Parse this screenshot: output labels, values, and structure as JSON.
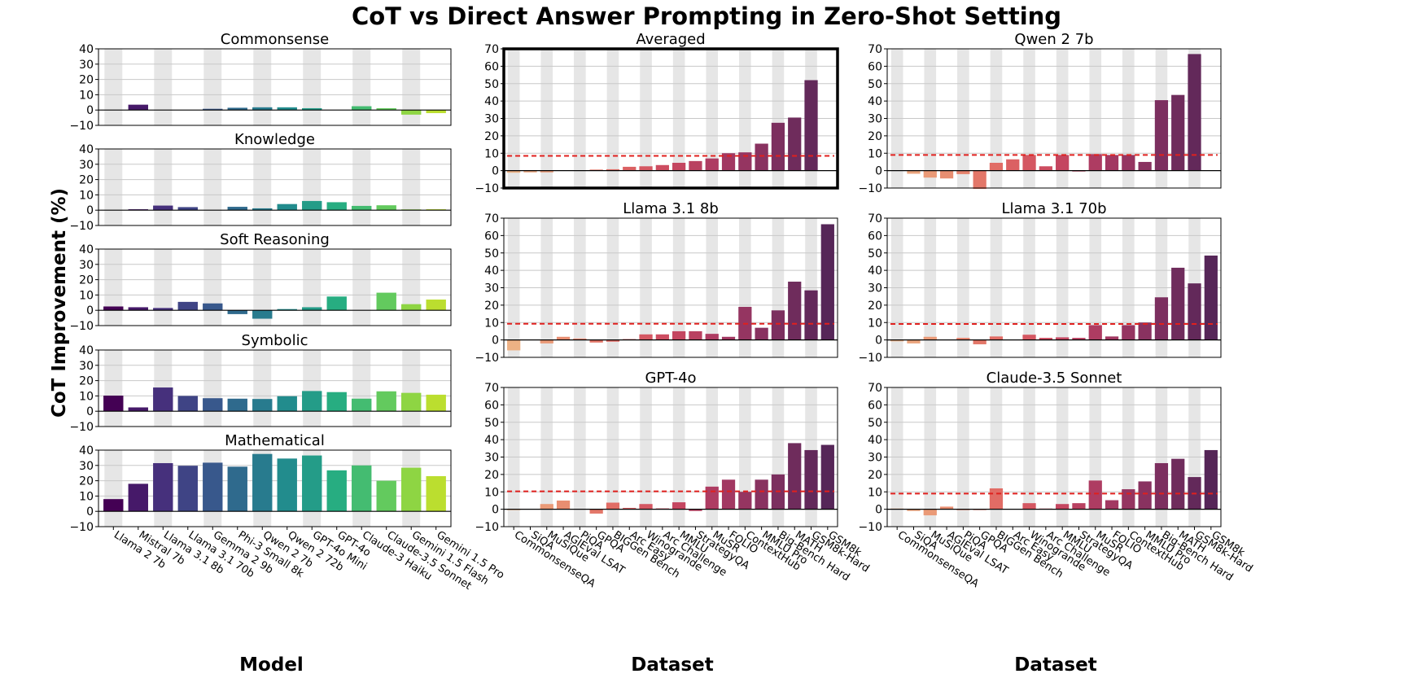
{
  "title": "CoT vs Direct Answer Prompting in Zero-Shot Setting",
  "ylabel": "CoT Improvement (%)",
  "model_axis_label": "Model",
  "dataset_axis_label": "Dataset",
  "colors": {
    "grid": "#c8c8c8",
    "band": "#e6e6e6",
    "mean_line": "#e0201e",
    "highlight_border": "#000000"
  },
  "bottom_caption_fragment": "",
  "chart_data": [
    {
      "id": "commonsense",
      "type": "bar",
      "title": "Commonsense",
      "ylim": [
        -10,
        40
      ],
      "yticks": [
        -10,
        0,
        10,
        20,
        30,
        40
      ],
      "palette": "viridis",
      "categories": [
        "Llama 2 7b",
        "Mistral 7b",
        "Llama 3.1 8b",
        "Llama 3.1 70b",
        "Gemma 2 9b",
        "Phi-3 Small 8k",
        "Qwen 2 7b",
        "Qwen 2 72b",
        "GPT-4o Mini",
        "GPT-4o",
        "Claude-3 Haiku",
        "Claude-3.5 Sonnet",
        "Gemini 1.5 Flash",
        "Gemini 1.5 Pro"
      ],
      "values": [
        0,
        3.5,
        0,
        0,
        0.8,
        1.5,
        1.8,
        1.8,
        1.2,
        0,
        2.5,
        1.2,
        -3.0,
        -2.0
      ]
    },
    {
      "id": "knowledge",
      "type": "bar",
      "title": "Knowledge",
      "ylim": [
        -10,
        40
      ],
      "yticks": [
        -10,
        0,
        10,
        20,
        30,
        40
      ],
      "palette": "viridis",
      "categories": [
        "Llama 2 7b",
        "Mistral 7b",
        "Llama 3.1 8b",
        "Llama 3.1 70b",
        "Gemma 2 9b",
        "Phi-3 Small 8k",
        "Qwen 2 7b",
        "Qwen 2 72b",
        "GPT-4o Mini",
        "GPT-4o",
        "Claude-3 Haiku",
        "Claude-3.5 Sonnet",
        "Gemini 1.5 Flash",
        "Gemini 1.5 Pro"
      ],
      "values": [
        0,
        0.6,
        3.0,
        2.0,
        0,
        2.2,
        1.2,
        4.0,
        6.0,
        5.2,
        2.8,
        3.2,
        0.5,
        0.6
      ]
    },
    {
      "id": "soft_reasoning",
      "type": "bar",
      "title": "Soft Reasoning",
      "ylim": [
        -10,
        40
      ],
      "yticks": [
        -10,
        0,
        10,
        20,
        30,
        40
      ],
      "palette": "viridis",
      "categories": [
        "Llama 2 7b",
        "Mistral 7b",
        "Llama 3.1 8b",
        "Llama 3.1 70b",
        "Gemma 2 9b",
        "Phi-3 Small 8k",
        "Qwen 2 7b",
        "Qwen 2 72b",
        "GPT-4o Mini",
        "GPT-4o",
        "Claude-3 Haiku",
        "Claude-3.5 Sonnet",
        "Gemini 1.5 Flash",
        "Gemini 1.5 Pro"
      ],
      "values": [
        2.5,
        2.0,
        1.5,
        5.5,
        4.5,
        -2.5,
        -5.5,
        0.8,
        2.0,
        9.0,
        0,
        11.5,
        4.0,
        7.0
      ]
    },
    {
      "id": "symbolic",
      "type": "bar",
      "title": "Symbolic",
      "ylim": [
        -10,
        40
      ],
      "yticks": [
        -10,
        0,
        10,
        20,
        30,
        40
      ],
      "palette": "viridis",
      "categories": [
        "Llama 2 7b",
        "Mistral 7b",
        "Llama 3.1 8b",
        "Llama 3.1 70b",
        "Gemma 2 9b",
        "Phi-3 Small 8k",
        "Qwen 2 7b",
        "Qwen 2 72b",
        "GPT-4o Mini",
        "GPT-4o",
        "Claude-3 Haiku",
        "Claude-3.5 Sonnet",
        "Gemini 1.5 Flash",
        "Gemini 1.5 Pro"
      ],
      "values": [
        10.2,
        2.5,
        15.5,
        10.0,
        8.5,
        8.2,
        8.0,
        9.8,
        13.2,
        12.5,
        8.2,
        13.0,
        12.0,
        10.8
      ]
    },
    {
      "id": "mathematical",
      "type": "bar",
      "title": "Mathematical",
      "ylim": [
        -10,
        40
      ],
      "yticks": [
        -10,
        0,
        10,
        20,
        30,
        40
      ],
      "palette": "viridis",
      "categories": [
        "Llama 2 7b",
        "Mistral 7b",
        "Llama 3.1 8b",
        "Llama 3.1 70b",
        "Gemma 2 9b",
        "Phi-3 Small 8k",
        "Qwen 2 7b",
        "Qwen 2 72b",
        "GPT-4o Mini",
        "GPT-4o",
        "Claude-3 Haiku",
        "Claude-3.5 Sonnet",
        "Gemini 1.5 Flash",
        "Gemini 1.5 Pro"
      ],
      "values": [
        8.0,
        18.0,
        31.5,
        29.8,
        31.8,
        29.2,
        37.5,
        34.5,
        36.5,
        26.8,
        30.0,
        20.0,
        28.5,
        23.0
      ],
      "xlabel": "Model"
    },
    {
      "id": "averaged",
      "type": "bar",
      "title": "Averaged",
      "ylim": [
        -10,
        70
      ],
      "yticks": [
        -10,
        0,
        10,
        20,
        30,
        40,
        50,
        60,
        70
      ],
      "palette": "flare",
      "highlight": true,
      "categories": [
        "CommonsenseQA",
        "SiQA",
        "MuSiQue",
        "AGIEval LSAT",
        "PiQA",
        "GPQA",
        "BIGGen Bench",
        "Arc Easy",
        "Winogrande",
        "Arc Challenge",
        "MMLU",
        "StrategyQA",
        "MuSR",
        "FOLIO",
        "ContextHub",
        "MMLU Pro",
        "Big-Bench Hard",
        "MATH",
        "GSM8k-Hard",
        "GSM8k"
      ],
      "values": [
        -1.2,
        -1.0,
        -1.0,
        0,
        0,
        0.6,
        0.8,
        2.2,
        2.5,
        3.2,
        4.5,
        5.5,
        7.0,
        10.0,
        10.5,
        15.5,
        27.5,
        30.5,
        52.0,
        0
      ],
      "mean": 8.5
    },
    {
      "id": "qwen2_7b",
      "type": "bar",
      "title": "Qwen 2 7b",
      "ylim": [
        -10,
        70
      ],
      "yticks": [
        -10,
        0,
        10,
        20,
        30,
        40,
        50,
        60,
        70
      ],
      "palette": "flare",
      "categories": [
        "CommonsenseQA",
        "SiQA",
        "MuSiQue",
        "AGIEval LSAT",
        "PiQA",
        "GPQA",
        "BIGGen Bench",
        "Arc Easy",
        "Winogrande",
        "Arc Challenge",
        "MMLU",
        "StrategyQA",
        "MuSR",
        "FOLIO",
        "ContextHub",
        "MMLU Pro",
        "Big-Bench Hard",
        "MATH",
        "GSM8k-Hard",
        "GSM8k"
      ],
      "values": [
        0,
        -1.8,
        -4.0,
        -4.5,
        -2.0,
        -10.5,
        4.5,
        6.5,
        9.0,
        2.5,
        9.0,
        -0.5,
        9.5,
        9.0,
        9.0,
        5.0,
        40.5,
        43.5,
        67.0,
        0
      ],
      "mean": 9.0
    },
    {
      "id": "llama31_8b",
      "type": "bar",
      "title": "Llama 3.1 8b",
      "ylim": [
        -10,
        70
      ],
      "yticks": [
        -10,
        0,
        10,
        20,
        30,
        40,
        50,
        60,
        70
      ],
      "palette": "flare",
      "categories": [
        "CommonsenseQA",
        "SiQA",
        "MuSiQue",
        "AGIEval LSAT",
        "PiQA",
        "GPQA",
        "BIGGen Bench",
        "Arc Easy",
        "Winogrande",
        "Arc Challenge",
        "MMLU",
        "StrategyQA",
        "MuSR",
        "FOLIO",
        "ContextHub",
        "MMLU Pro",
        "Big-Bench Hard",
        "MATH",
        "GSM8k-Hard",
        "GSM8k"
      ],
      "values": [
        -6.0,
        0,
        -2.0,
        1.8,
        0.8,
        -1.5,
        -1.0,
        0.5,
        3.2,
        3.2,
        5.0,
        5.0,
        3.5,
        1.8,
        19.0,
        7.0,
        17.0,
        33.5,
        28.5,
        66.5
      ],
      "mean": 9.3
    },
    {
      "id": "llama31_70b",
      "type": "bar",
      "title": "Llama 3.1 70b",
      "ylim": [
        -10,
        70
      ],
      "yticks": [
        -10,
        0,
        10,
        20,
        30,
        40,
        50,
        60,
        70
      ],
      "palette": "flare",
      "categories": [
        "CommonsenseQA",
        "SiQA",
        "MuSiQue",
        "AGIEval LSAT",
        "PiQA",
        "GPQA",
        "BIGGen Bench",
        "Arc Easy",
        "Winogrande",
        "Arc Challenge",
        "MMLU",
        "StrategyQA",
        "MuSR",
        "FOLIO",
        "ContextHub",
        "MMLU Pro",
        "Big-Bench Hard",
        "MATH",
        "GSM8k-Hard",
        "GSM8k"
      ],
      "values": [
        -0.8,
        -2.0,
        1.8,
        0,
        1.2,
        -2.5,
        2.0,
        0,
        3.0,
        1.2,
        1.5,
        1.2,
        8.5,
        2.0,
        8.5,
        10.0,
        24.5,
        41.5,
        32.5,
        48.5
      ],
      "mean": 9.2
    },
    {
      "id": "gpt4o",
      "type": "bar",
      "title": "GPT-4o",
      "ylim": [
        -10,
        70
      ],
      "yticks": [
        -10,
        0,
        10,
        20,
        30,
        40,
        50,
        60,
        70
      ],
      "palette": "flare",
      "categories": [
        "CommonsenseQA",
        "SiQA",
        "MuSiQue",
        "AGIEval LSAT",
        "PiQA",
        "GPQA",
        "BIGGen Bench",
        "Arc Easy",
        "Winogrande",
        "Arc Challenge",
        "MMLU",
        "StrategyQA",
        "MuSR",
        "FOLIO",
        "ContextHub",
        "MMLU Pro",
        "Big-Bench Hard",
        "MATH",
        "GSM8k-Hard",
        "GSM8k"
      ],
      "values": [
        -0.5,
        0,
        3.0,
        5.0,
        0,
        -2.5,
        3.8,
        0.8,
        3.0,
        0.5,
        4.0,
        -1.0,
        13.0,
        17.0,
        10.0,
        17.0,
        20.0,
        38.0,
        34.0,
        37.0
      ],
      "mean": 10.3,
      "xlabel": "Dataset"
    },
    {
      "id": "claude35_sonnet",
      "type": "bar",
      "title": "Claude-3.5 Sonnet",
      "ylim": [
        -10,
        70
      ],
      "yticks": [
        -10,
        0,
        10,
        20,
        30,
        40,
        50,
        60,
        70
      ],
      "palette": "flare",
      "categories": [
        "CommonsenseQA",
        "SiQA",
        "MuSiQue",
        "AGIEval LSAT",
        "PiQA",
        "GPQA",
        "BIGGen Bench",
        "Arc Easy",
        "Winogrande",
        "Arc Challenge",
        "MMLU",
        "StrategyQA",
        "MuSR",
        "FOLIO",
        "ContextHub",
        "MMLU Pro",
        "Big-Bench Hard",
        "MATH",
        "GSM8k-Hard",
        "GSM8k"
      ],
      "values": [
        0.4,
        -1.0,
        -3.5,
        1.5,
        -0.5,
        -0.3,
        12.0,
        0,
        3.5,
        0.4,
        3.0,
        3.5,
        16.5,
        5.2,
        11.5,
        16.0,
        26.5,
        29.0,
        18.5,
        34.0
      ],
      "mean": 9.0,
      "xlabel": "Dataset"
    }
  ]
}
